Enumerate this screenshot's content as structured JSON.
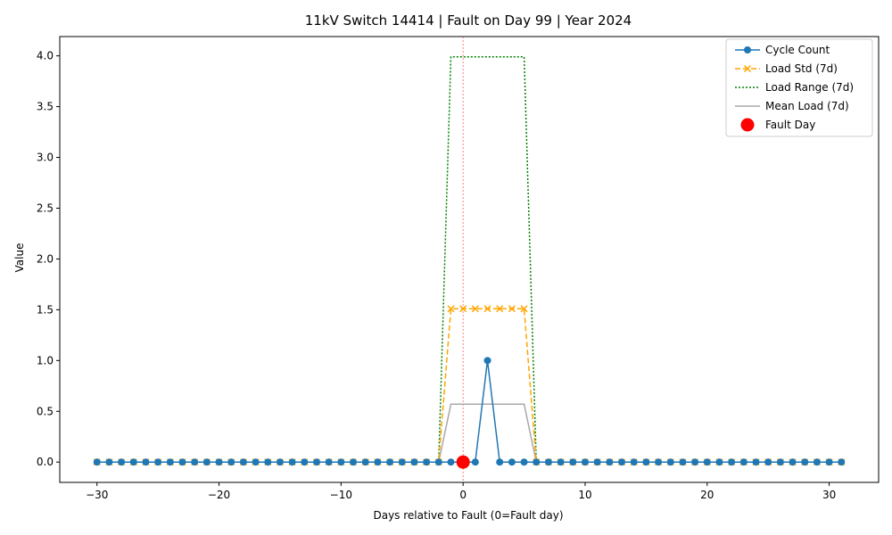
{
  "chart_data": {
    "type": "line",
    "title": "11kV Switch 14414 | Fault on Day 99 | Year 2024",
    "xlabel": "Days relative to Fault (0=Fault day)",
    "ylabel": "Value",
    "xlim": [
      -33.05,
      34.05
    ],
    "ylim": [
      -0.2,
      4.19
    ],
    "xticks": [
      -30,
      -20,
      -10,
      0,
      10,
      20,
      30
    ],
    "xtick_labels": [
      "−30",
      "−20",
      "−10",
      "0",
      "10",
      "20",
      "30"
    ],
    "yticks": [
      0.0,
      0.5,
      1.0,
      1.5,
      2.0,
      2.5,
      3.0,
      3.5,
      4.0
    ],
    "ytick_labels": [
      "0.0",
      "0.5",
      "1.0",
      "1.5",
      "2.0",
      "2.5",
      "3.0",
      "3.5",
      "4.0"
    ],
    "grid": false,
    "legend_position": "upper-right",
    "x": [
      -30,
      -29,
      -28,
      -27,
      -26,
      -25,
      -24,
      -23,
      -22,
      -21,
      -20,
      -19,
      -18,
      -17,
      -16,
      -15,
      -14,
      -13,
      -12,
      -11,
      -10,
      -9,
      -8,
      -7,
      -6,
      -5,
      -4,
      -3,
      -2,
      -1,
      0,
      1,
      2,
      3,
      4,
      5,
      6,
      7,
      8,
      9,
      10,
      11,
      12,
      13,
      14,
      15,
      16,
      17,
      18,
      19,
      20,
      21,
      22,
      23,
      24,
      25,
      26,
      27,
      28,
      29,
      30,
      31
    ],
    "series": [
      {
        "name": "Cycle Count",
        "color": "#1f77b4",
        "style": "solid",
        "marker": "circle",
        "values": [
          0,
          0,
          0,
          0,
          0,
          0,
          0,
          0,
          0,
          0,
          0,
          0,
          0,
          0,
          0,
          0,
          0,
          0,
          0,
          0,
          0,
          0,
          0,
          0,
          0,
          0,
          0,
          0,
          0,
          0,
          0,
          0,
          1,
          0,
          0,
          0,
          0,
          0,
          0,
          0,
          0,
          0,
          0,
          0,
          0,
          0,
          0,
          0,
          0,
          0,
          0,
          0,
          0,
          0,
          0,
          0,
          0,
          0,
          0,
          0,
          0,
          0
        ]
      },
      {
        "name": "Load Std (7d)",
        "color": "#ffa500",
        "style": "dashed",
        "marker": "x",
        "values": [
          0,
          0,
          0,
          0,
          0,
          0,
          0,
          0,
          0,
          0,
          0,
          0,
          0,
          0,
          0,
          0,
          0,
          0,
          0,
          0,
          0,
          0,
          0,
          0,
          0,
          0,
          0,
          0,
          0,
          1.51,
          1.51,
          1.51,
          1.51,
          1.51,
          1.51,
          1.51,
          0,
          0,
          0,
          0,
          0,
          0,
          0,
          0,
          0,
          0,
          0,
          0,
          0,
          0,
          0,
          0,
          0,
          0,
          0,
          0,
          0,
          0,
          0,
          0,
          0,
          0
        ]
      },
      {
        "name": "Load Range (7d)",
        "color": "#008000",
        "style": "dotted",
        "marker": "none",
        "values": [
          0,
          0,
          0,
          0,
          0,
          0,
          0,
          0,
          0,
          0,
          0,
          0,
          0,
          0,
          0,
          0,
          0,
          0,
          0,
          0,
          0,
          0,
          0,
          0,
          0,
          0,
          0,
          0,
          0,
          3.99,
          3.99,
          3.99,
          3.99,
          3.99,
          3.99,
          3.99,
          0,
          0,
          0,
          0,
          0,
          0,
          0,
          0,
          0,
          0,
          0,
          0,
          0,
          0,
          0,
          0,
          0,
          0,
          0,
          0,
          0,
          0,
          0,
          0,
          0,
          0
        ]
      },
      {
        "name": "Mean Load (7d)",
        "color": "#a9a9a9",
        "style": "solid",
        "marker": "none",
        "values": [
          0,
          0,
          0,
          0,
          0,
          0,
          0,
          0,
          0,
          0,
          0,
          0,
          0,
          0,
          0,
          0,
          0,
          0,
          0,
          0,
          0,
          0,
          0,
          0,
          0,
          0,
          0,
          0,
          0,
          0.57,
          0.57,
          0.57,
          0.57,
          0.57,
          0.57,
          0.57,
          0,
          0,
          0,
          0,
          0,
          0,
          0,
          0,
          0,
          0,
          0,
          0,
          0,
          0,
          0,
          0,
          0,
          0,
          0,
          0,
          0,
          0,
          0,
          0,
          0,
          0
        ]
      }
    ],
    "fault_point": {
      "name": "Fault Day",
      "x": 0,
      "y": 0,
      "color": "#ff0000"
    },
    "fault_line": {
      "x": 0,
      "color": "#ff0000",
      "style": "dotted"
    }
  }
}
